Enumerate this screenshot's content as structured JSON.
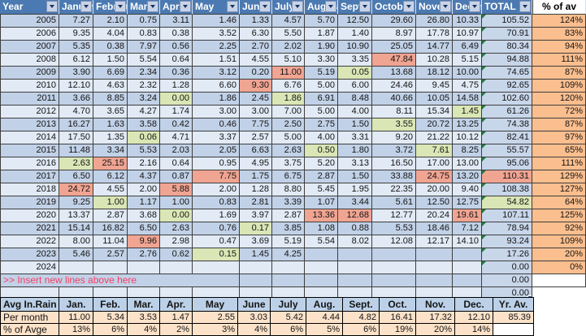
{
  "colors": {
    "header_blue": "#4B79B1",
    "band_dark": "#C1D1E7",
    "band_light": "#E1EAF5",
    "highlight_red": "#F0A492",
    "highlight_green": "#DAE6B5",
    "total_bg": "#C8D6EA",
    "pct_orange": "#FBBE8E",
    "summary_header_blue": "#BCD1E8",
    "summary_row_peach": "#FCE2C9",
    "insert_text_red": "#F63E63"
  },
  "main_table": {
    "headers": [
      {
        "label": "Year",
        "filter": true
      },
      {
        "label": "January",
        "filter": true
      },
      {
        "label": "February",
        "filter": true
      },
      {
        "label": "March",
        "filter": true
      },
      {
        "label": "April",
        "filter": true
      },
      {
        "label": "May",
        "filter": true
      },
      {
        "label": "June",
        "filter": true
      },
      {
        "label": "July",
        "filter": true
      },
      {
        "label": "August",
        "filter": true
      },
      {
        "label": "Sept",
        "filter": true
      },
      {
        "label": "October",
        "filter": true
      },
      {
        "label": "November",
        "filter": true
      },
      {
        "label": "December",
        "filter": true
      },
      {
        "label": "TOTAL",
        "filter": true
      },
      {
        "label": "% of av",
        "filter": false
      }
    ],
    "rows": [
      {
        "year": "2005",
        "months": [
          "7.27",
          "2.10",
          "0.75",
          "3.11",
          "1.46",
          "1.33",
          "4.57",
          "5.70",
          "12.50",
          "29.60",
          "26.80",
          "10.33"
        ],
        "total": "105.52",
        "pct": "124%",
        "hl": {}
      },
      {
        "year": "2006",
        "months": [
          "9.35",
          "4.04",
          "0.83",
          "0.38",
          "3.52",
          "6.30",
          "5.50",
          "1.87",
          "1.40",
          "8.97",
          "17.78",
          "10.97"
        ],
        "total": "70.91",
        "pct": "83%",
        "hl": {}
      },
      {
        "year": "2007",
        "months": [
          "5.35",
          "0.38",
          "7.97",
          "0.56",
          "2.25",
          "2.70",
          "2.02",
          "1.90",
          "10.90",
          "25.05",
          "14.77",
          "6.49"
        ],
        "total": "80.34",
        "pct": "94%",
        "hl": {}
      },
      {
        "year": "2008",
        "months": [
          "6.12",
          "1.50",
          "5.54",
          "0.64",
          "1.51",
          "4.55",
          "5.10",
          "3.30",
          "3.35",
          "47.84",
          "10.28",
          "5.15"
        ],
        "total": "94.88",
        "pct": "111%",
        "hl": {
          "9": "red"
        }
      },
      {
        "year": "2009",
        "months": [
          "3.90",
          "6.69",
          "2.34",
          "0.36",
          "3.12",
          "0.20",
          "11.00",
          "5.19",
          "0.05",
          "13.68",
          "18.12",
          "10.00"
        ],
        "total": "74.65",
        "pct": "87%",
        "hl": {
          "6": "red",
          "8": "green"
        }
      },
      {
        "year": "2010",
        "months": [
          "12.10",
          "4.63",
          "2.32",
          "1.28",
          "6.60",
          "9.30",
          "6.76",
          "5.00",
          "6.00",
          "24.46",
          "9.45",
          "4.75"
        ],
        "total": "92.65",
        "pct": "109%",
        "hl": {
          "5": "red"
        }
      },
      {
        "year": "2011",
        "months": [
          "3.66",
          "8.85",
          "3.24",
          "0.00",
          "1.86",
          "2.45",
          "1.86",
          "6.91",
          "8.48",
          "40.66",
          "10.05",
          "14.58"
        ],
        "total": "102.60",
        "pct": "120%",
        "hl": {
          "3": "green",
          "6": "green"
        }
      },
      {
        "year": "2012",
        "months": [
          "4.70",
          "3.65",
          "4.27",
          "1.74",
          "3.00",
          "3.00",
          "7.00",
          "5.00",
          "4.00",
          "8.11",
          "15.34",
          "1.45"
        ],
        "total": "61.26",
        "pct": "72%",
        "hl": {
          "11": "green"
        }
      },
      {
        "year": "2013",
        "months": [
          "16.27",
          "1.63",
          "3.58",
          "0.42",
          "0.46",
          "7.75",
          "2.50",
          "2.75",
          "1.50",
          "3.55",
          "20.72",
          "13.25"
        ],
        "total": "74.38",
        "pct": "87%",
        "hl": {
          "9": "green"
        }
      },
      {
        "year": "2014",
        "months": [
          "17.50",
          "1.35",
          "0.06",
          "4.71",
          "3.37",
          "2.57",
          "5.00",
          "4.00",
          "3.31",
          "9.20",
          "21.22",
          "10.12"
        ],
        "total": "82.41",
        "pct": "97%",
        "hl": {
          "2": "green"
        }
      },
      {
        "year": "2015",
        "months": [
          "11.48",
          "3.34",
          "5.53",
          "2.03",
          "2.05",
          "6.63",
          "2.63",
          "0.50",
          "1.80",
          "3.72",
          "7.61",
          "8.25"
        ],
        "total": "55.57",
        "pct": "65%",
        "hl": {
          "7": "green",
          "10": "green"
        }
      },
      {
        "year": "2016",
        "months": [
          "2.63",
          "25.15",
          "2.16",
          "0.64",
          "0.95",
          "4.95",
          "3.75",
          "5.20",
          "3.13",
          "16.50",
          "17.00",
          "13.00"
        ],
        "total": "95.06",
        "pct": "111%",
        "hl": {
          "0": "green",
          "1": "red"
        }
      },
      {
        "year": "2017",
        "months": [
          "6.50",
          "6.12",
          "4.37",
          "0.87",
          "7.75",
          "1.75",
          "6.75",
          "2.87",
          "1.50",
          "33.88",
          "24.75",
          "13.20"
        ],
        "total": "110.31",
        "pct": "129%",
        "hl": {
          "4": "red",
          "10": "red",
          "total": "red"
        }
      },
      {
        "year": "2018",
        "months": [
          "24.72",
          "4.55",
          "2.00",
          "5.88",
          "2.00",
          "1.28",
          "8.80",
          "5.45",
          "1.95",
          "22.35",
          "20.00",
          "9.40"
        ],
        "total": "108.38",
        "pct": "127%",
        "hl": {
          "0": "red",
          "3": "red"
        }
      },
      {
        "year": "2019",
        "months": [
          "9.25",
          "1.00",
          "1.17",
          "1.00",
          "0.83",
          "2.81",
          "3.39",
          "1.07",
          "3.44",
          "5.61",
          "12.50",
          "12.75"
        ],
        "total": "54.82",
        "pct": "64%",
        "hl": {
          "1": "green",
          "total": "green"
        }
      },
      {
        "year": "2020",
        "months": [
          "13.37",
          "2.87",
          "3.68",
          "0.00",
          "1.69",
          "3.97",
          "2.87",
          "13.36",
          "12.68",
          "12.77",
          "20.24",
          "19.61"
        ],
        "total": "107.11",
        "pct": "125%",
        "hl": {
          "3": "green",
          "7": "red",
          "8": "red",
          "11": "red"
        }
      },
      {
        "year": "2021",
        "months": [
          "15.14",
          "16.82",
          "6.50",
          "2.63",
          "0.76",
          "0.17",
          "3.85",
          "1.08",
          "0.88",
          "5.53",
          "18.46",
          "7.12"
        ],
        "total": "78.94",
        "pct": "92%",
        "hl": {
          "5": "green"
        }
      },
      {
        "year": "2022",
        "months": [
          "8.00",
          "11.04",
          "9.96",
          "2.98",
          "0.47",
          "3.69",
          "5.19",
          "5.54",
          "8.02",
          "12.08",
          "12.17",
          "14.10"
        ],
        "total": "93.24",
        "pct": "109%",
        "hl": {
          "2": "red"
        }
      },
      {
        "year": "2023",
        "months": [
          "5.46",
          "2.57",
          "2.76",
          "0.62",
          "0.15",
          "1.45",
          "4.25",
          "",
          "",
          "",
          "",
          ""
        ],
        "total": "17.26",
        "pct": "20%",
        "hl": {
          "4": "green"
        }
      },
      {
        "year": "2024",
        "months": [
          "",
          "",
          "",
          "",
          "",
          "",
          "",
          "",
          "",
          "",
          "",
          ""
        ],
        "total": "0.00",
        "pct": "0%",
        "hl": {}
      }
    ],
    "insert_row": {
      "label": ">> Insert new lines above here",
      "total": "0.00"
    },
    "blank_row": {
      "total": "0.00"
    }
  },
  "summary_table": {
    "title": "Avg In.Rain",
    "columns": [
      "Jan.",
      "Feb.",
      "Mar.",
      "Apr.",
      "May",
      "June",
      "July",
      "Aug.",
      "Sept.",
      "Oct.",
      "Nov.",
      "Dec.",
      "Yr. Av."
    ],
    "per_month": {
      "label": "Per month",
      "values": [
        "11.00",
        "5.34",
        "3.53",
        "1.47",
        "2.55",
        "3.03",
        "5.42",
        "4.44",
        "4.82",
        "16.41",
        "17.32",
        "12.10",
        "85.39"
      ]
    },
    "pct_of_avge": {
      "label": "% of Avge",
      "values": [
        "13%",
        "6%",
        "4%",
        "2%",
        "3%",
        "4%",
        "6%",
        "5%",
        "6%",
        "19%",
        "20%",
        "14%",
        ""
      ]
    }
  }
}
